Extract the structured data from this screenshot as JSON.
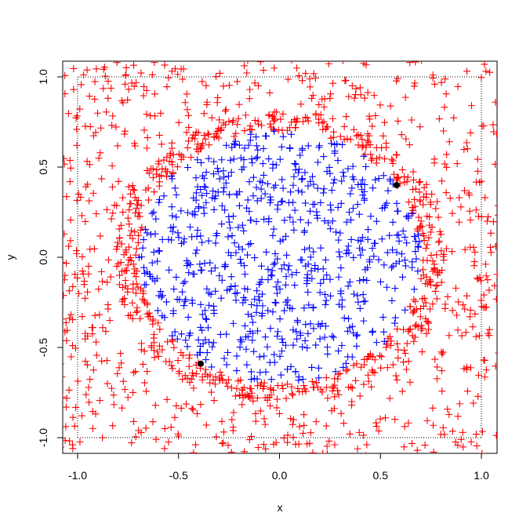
{
  "chart_data": {
    "type": "scatter",
    "title": "",
    "xlabel": "x",
    "ylabel": "y",
    "xlim": [
      -1.1,
      1.1
    ],
    "ylim": [
      -1.08,
      1.08
    ],
    "x_ticks": [
      -1.0,
      -0.5,
      0.0,
      0.5,
      1.0
    ],
    "x_tick_labels": [
      "-1.0",
      "-0.5",
      "0.0",
      "0.5",
      "1.0"
    ],
    "y_ticks": [
      -1.0,
      -0.5,
      0.0,
      0.5,
      1.0
    ],
    "y_tick_labels": [
      "-1.0",
      "-0.5",
      "0.0",
      "0.5",
      "1.0"
    ],
    "grid": false,
    "reference_square": [
      -1,
      1
    ],
    "point_counts": {
      "outer": 1200,
      "inner": 700
    },
    "series": [
      {
        "color": "#ff0000",
        "marker": "plus",
        "region": "outside circle",
        "approx_count": 1200
      },
      {
        "color": "#0000ff",
        "marker": "plus",
        "region": "inside circle of radius 0.7",
        "approx_count": 700
      },
      {
        "color": "#000000",
        "marker": "filled-circle",
        "points": [
          [
            0.58,
            0.4
          ],
          [
            -0.39,
            -0.59
          ]
        ]
      }
    ],
    "circle_radius": 0.7,
    "axis_color": "#000000"
  }
}
